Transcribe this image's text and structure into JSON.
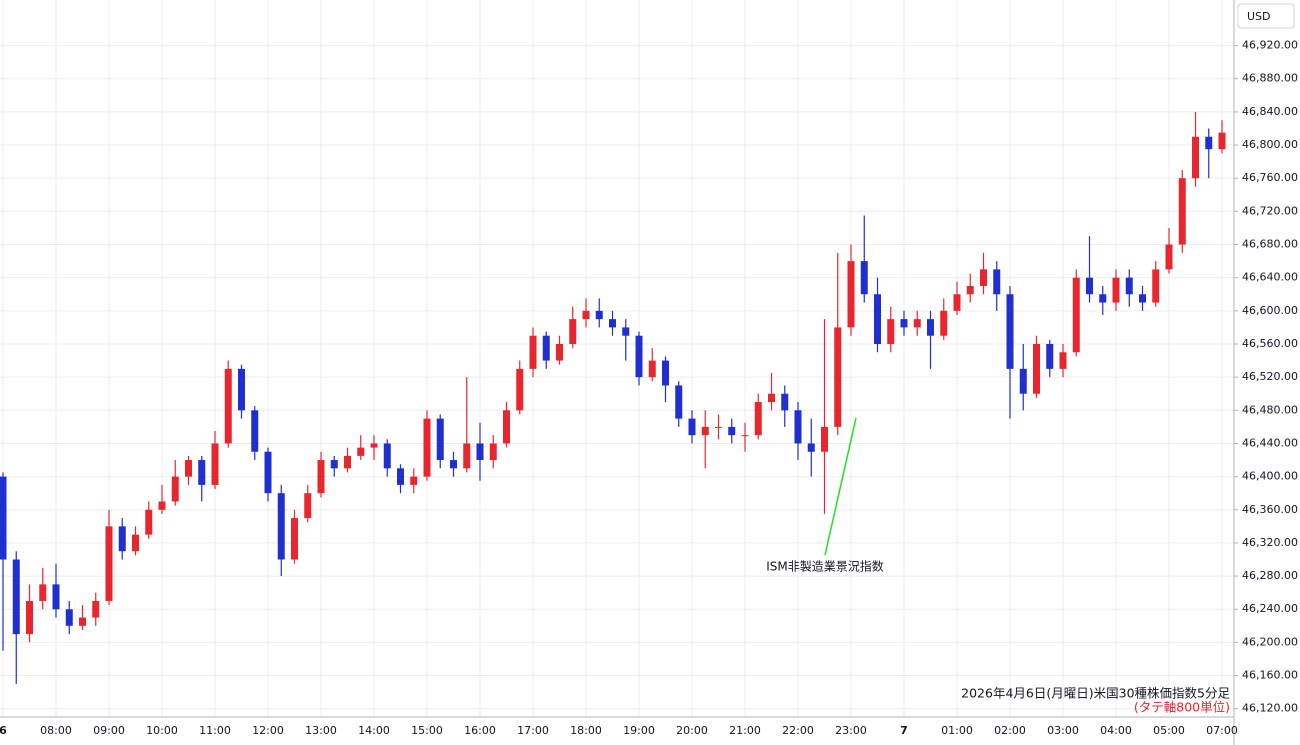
{
  "chart_data": {
    "type": "candlestick",
    "title": "2026年4月6日(月曜日)米国30種株価指数5分足",
    "subtitle": "(タテ軸800単位)",
    "currency": "USD",
    "annotation": "ISM非製造業景況指数",
    "up_color": "#e8262e",
    "down_color": "#1f2fd0",
    "grid": true,
    "categories": [
      "6",
      null,
      null,
      null,
      "08:00",
      null,
      null,
      null,
      "09:00",
      null,
      null,
      null,
      "10:00",
      null,
      null,
      null,
      "11:00",
      null,
      null,
      null,
      "12:00",
      null,
      null,
      null,
      "13:00",
      null,
      null,
      null,
      "14:00",
      null,
      null,
      null,
      "15:00",
      null,
      null,
      null,
      "16:00",
      null,
      null,
      null,
      "17:00",
      null,
      null,
      null,
      "18:00",
      null,
      null,
      null,
      "19:00",
      null,
      null,
      null,
      "20:00",
      null,
      null,
      null,
      "21:00",
      null,
      null,
      null,
      "22:00",
      null,
      null,
      null,
      "23:00",
      null,
      null,
      null,
      "7",
      null,
      null,
      null,
      "01:00",
      null,
      null,
      null,
      "02:00",
      null,
      null,
      null,
      "03:00",
      null,
      null,
      null,
      "04:00",
      null,
      null,
      null,
      "05:00",
      null,
      null,
      null,
      "07:00"
    ],
    "open": [
      46400,
      46300,
      46210,
      46250,
      46270,
      46240,
      46220,
      46230,
      46250,
      46340,
      46310,
      46330,
      46360,
      46370,
      46400,
      46420,
      46390,
      46440,
      46530,
      46480,
      46430,
      46380,
      46300,
      46350,
      46380,
      46420,
      46410,
      46425,
      46435,
      46440,
      46410,
      46390,
      46400,
      46470,
      46420,
      46410,
      46440,
      46420,
      46440,
      46480,
      46530,
      46570,
      46540,
      46560,
      46590,
      46600,
      46590,
      46580,
      46570,
      46520,
      46540,
      46510,
      46470,
      46450,
      46460,
      46460,
      46450,
      46450,
      46490,
      46500,
      46480,
      46440,
      46430,
      46460,
      46580,
      46660,
      46620,
      46560,
      46590,
      46580,
      46590,
      46570,
      46600,
      46620,
      46630,
      46650,
      46620,
      46530,
      46500,
      46560,
      46530,
      46550,
      46640,
      46620,
      46610,
      46640,
      46620,
      46610,
      46650,
      46680,
      46760,
      46810,
      46795
    ],
    "high": [
      46405,
      46310,
      46270,
      46290,
      46295,
      46250,
      46245,
      46260,
      46360,
      46350,
      46340,
      46370,
      46390,
      46420,
      46425,
      46425,
      46455,
      46540,
      46535,
      46485,
      46435,
      46390,
      46360,
      46390,
      46430,
      46425,
      46435,
      46450,
      46450,
      46445,
      46415,
      46410,
      46480,
      46475,
      46430,
      46520,
      46465,
      46450,
      46490,
      46540,
      46580,
      46575,
      46570,
      46605,
      46615,
      46615,
      46600,
      46590,
      46575,
      46555,
      46545,
      46515,
      46480,
      46480,
      46475,
      46470,
      46465,
      46500,
      46525,
      46510,
      46490,
      46470,
      46590,
      46670,
      46680,
      46715,
      46640,
      46605,
      46600,
      46600,
      46600,
      46615,
      46635,
      46645,
      46670,
      46660,
      46630,
      46560,
      46570,
      46565,
      46560,
      46650,
      46690,
      46630,
      46650,
      46650,
      46630,
      46660,
      46700,
      46770,
      46840,
      46820,
      46830
    ],
    "low": [
      46190,
      46150,
      46200,
      46240,
      46230,
      46210,
      46215,
      46220,
      46245,
      46300,
      46305,
      46325,
      46355,
      46365,
      46390,
      46370,
      46385,
      46435,
      46470,
      46420,
      46370,
      46280,
      46295,
      46345,
      46375,
      46400,
      46405,
      46420,
      46420,
      46400,
      46380,
      46380,
      46395,
      46410,
      46400,
      46405,
      46395,
      46410,
      46435,
      46475,
      46520,
      46530,
      46535,
      46555,
      46580,
      46580,
      46570,
      46540,
      46510,
      46515,
      46490,
      46460,
      46440,
      46410,
      46445,
      46440,
      46430,
      46445,
      46480,
      46460,
      46420,
      46400,
      46355,
      46450,
      46570,
      46610,
      46550,
      46550,
      46570,
      46570,
      46530,
      46565,
      46595,
      46610,
      46620,
      46600,
      46470,
      46480,
      46495,
      46520,
      46520,
      46545,
      46610,
      46595,
      46600,
      46605,
      46600,
      46605,
      46645,
      46670,
      46750,
      46760,
      46790
    ],
    "close": [
      46300,
      46210,
      46250,
      46270,
      46240,
      46220,
      46230,
      46250,
      46340,
      46310,
      46330,
      46360,
      46370,
      46400,
      46420,
      46390,
      46440,
      46530,
      46480,
      46430,
      46380,
      46300,
      46350,
      46380,
      46420,
      46410,
      46425,
      46435,
      46440,
      46410,
      46390,
      46400,
      46470,
      46420,
      46410,
      46440,
      46420,
      46440,
      46480,
      46530,
      46570,
      46540,
      46560,
      46590,
      46600,
      46590,
      46580,
      46570,
      46520,
      46540,
      46510,
      46470,
      46450,
      46460,
      46460,
      46450,
      46450,
      46490,
      46500,
      46480,
      46440,
      46430,
      46460,
      46580,
      46660,
      46620,
      46560,
      46590,
      46580,
      46590,
      46570,
      46600,
      46620,
      46630,
      46650,
      46620,
      46530,
      46500,
      46560,
      46530,
      46550,
      46640,
      46620,
      46610,
      46640,
      46620,
      46610,
      46650,
      46680,
      46760,
      46810,
      46795,
      46815
    ],
    "ylim": [
      46110,
      46975
    ],
    "yticks": [
      {
        "value": 46120,
        "label": "46,120.00"
      },
      {
        "value": 46160,
        "label": "46,160.00"
      },
      {
        "value": 46200,
        "label": "46,200.00"
      },
      {
        "value": 46240,
        "label": "46,240.00"
      },
      {
        "value": 46280,
        "label": "46,280.00"
      },
      {
        "value": 46320,
        "label": "46,320.00"
      },
      {
        "value": 46360,
        "label": "46,360.00"
      },
      {
        "value": 46400,
        "label": "46,400.00"
      },
      {
        "value": 46440,
        "label": "46,440.00"
      },
      {
        "value": 46480,
        "label": "46,480.00"
      },
      {
        "value": 46520,
        "label": "46,520.00"
      },
      {
        "value": 46560,
        "label": "46,560.00"
      },
      {
        "value": 46600,
        "label": "46,600.00"
      },
      {
        "value": 46640,
        "label": "46,640.00"
      },
      {
        "value": 46680,
        "label": "46,680.00"
      },
      {
        "value": 46720,
        "label": "46,720.00"
      },
      {
        "value": 46760,
        "label": "46,760.00"
      },
      {
        "value": 46800,
        "label": "46,800.00"
      },
      {
        "value": 46840,
        "label": "46,840.00"
      },
      {
        "value": 46880,
        "label": "46,880.00"
      },
      {
        "value": 46920,
        "label": "46,920.00"
      }
    ]
  }
}
